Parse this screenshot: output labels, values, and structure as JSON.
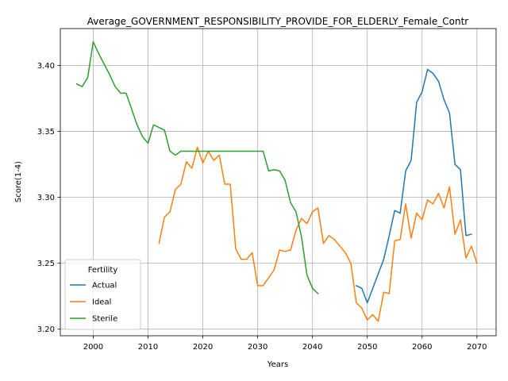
{
  "chart_data": {
    "type": "line",
    "title": "Average_GOVERNMENT_RESPONSIBILITY_PROVIDE_FOR_ELDERLY_Female_Contr",
    "xlabel": "Years",
    "ylabel": "Score(1-4)",
    "xlim": [
      1994,
      2073.5
    ],
    "ylim": [
      3.195,
      3.428
    ],
    "xticks": [
      2000,
      2010,
      2020,
      2030,
      2040,
      2050,
      2060,
      2070
    ],
    "yticks": [
      3.2,
      3.25,
      3.3,
      3.35,
      3.4
    ],
    "ytick_labels": [
      "3.20",
      "3.25",
      "3.30",
      "3.35",
      "3.40"
    ],
    "grid": true,
    "legend": {
      "title": "Fertility",
      "position": "lower-left"
    },
    "series": [
      {
        "name": "Actual",
        "color": "#1f77b4",
        "x": [
          2048,
          2049,
          2050,
          2051,
          2052,
          2053,
          2054,
          2055,
          2056,
          2057,
          2058,
          2059,
          2060,
          2061,
          2062,
          2063,
          2064,
          2065,
          2066,
          2067,
          2068,
          2069
        ],
        "y": [
          3.233,
          3.231,
          3.22,
          3.231,
          3.242,
          3.253,
          3.271,
          3.29,
          3.288,
          3.32,
          3.328,
          3.372,
          3.38,
          3.397,
          3.394,
          3.388,
          3.374,
          3.364,
          3.325,
          3.321,
          3.271,
          3.272
        ]
      },
      {
        "name": "Ideal",
        "color": "#ff7f0e",
        "x": [
          2012,
          2013,
          2014,
          2015,
          2016,
          2017,
          2018,
          2019,
          2020,
          2021,
          2022,
          2023,
          2024,
          2025,
          2026,
          2027,
          2028,
          2029,
          2030,
          2031,
          2032,
          2033,
          2034,
          2035,
          2036,
          2037,
          2038,
          2039,
          2040,
          2041,
          2042,
          2043,
          2044,
          2045,
          2046,
          2047,
          2048,
          2049,
          2050,
          2051,
          2052,
          2053,
          2054,
          2055,
          2056,
          2057,
          2058,
          2059,
          2060,
          2061,
          2062,
          2063,
          2064,
          2065,
          2066,
          2067,
          2068,
          2069,
          2070
        ],
        "y": [
          3.265,
          3.285,
          3.289,
          3.306,
          3.31,
          3.327,
          3.322,
          3.338,
          3.326,
          3.335,
          3.328,
          3.332,
          3.31,
          3.31,
          3.261,
          3.253,
          3.253,
          3.258,
          3.233,
          3.233,
          3.239,
          3.245,
          3.26,
          3.259,
          3.26,
          3.275,
          3.284,
          3.28,
          3.289,
          3.292,
          3.265,
          3.271,
          3.268,
          3.263,
          3.258,
          3.25,
          3.22,
          3.216,
          3.207,
          3.211,
          3.206,
          3.228,
          3.227,
          3.267,
          3.268,
          3.295,
          3.269,
          3.288,
          3.283,
          3.298,
          3.295,
          3.303,
          3.292,
          3.308,
          3.272,
          3.283,
          3.254,
          3.263,
          3.25
        ]
      },
      {
        "name": "Sterile",
        "color": "#2ca02c",
        "x": [
          1997,
          1998,
          1999,
          2000,
          2001,
          2002,
          2003,
          2004,
          2005,
          2006,
          2007,
          2008,
          2009,
          2010,
          2011,
          2012,
          2013,
          2014,
          2015,
          2016,
          2017,
          2018,
          2019,
          2020,
          2021,
          2022,
          2023,
          2024,
          2025,
          2026,
          2027,
          2028,
          2029,
          2030,
          2031,
          2032,
          2033,
          2034,
          2035,
          2036,
          2037,
          2038,
          2039,
          2040,
          2041
        ],
        "y": [
          3.386,
          3.384,
          3.391,
          3.418,
          3.409,
          3.401,
          3.393,
          3.384,
          3.379,
          3.379,
          3.367,
          3.355,
          3.346,
          3.341,
          3.355,
          3.353,
          3.351,
          3.335,
          3.332,
          3.335,
          3.335,
          3.335,
          3.335,
          3.335,
          3.335,
          3.335,
          3.335,
          3.335,
          3.335,
          3.335,
          3.335,
          3.335,
          3.335,
          3.335,
          3.335,
          3.32,
          3.321,
          3.32,
          3.313,
          3.296,
          3.289,
          3.27,
          3.241,
          3.231,
          3.227
        ]
      }
    ]
  }
}
